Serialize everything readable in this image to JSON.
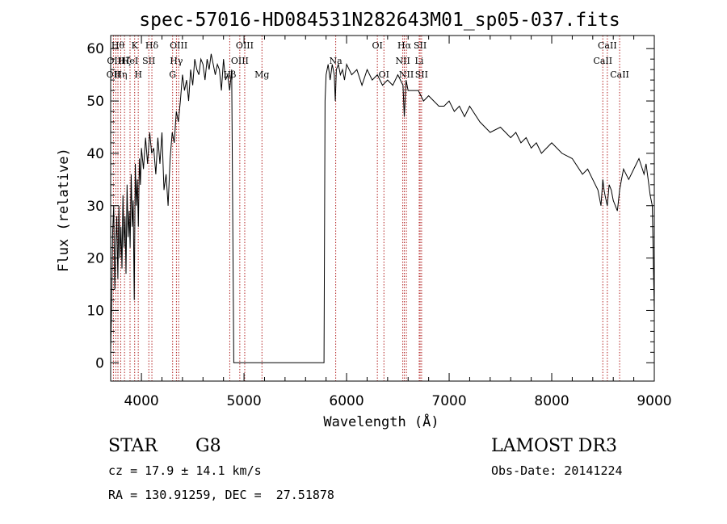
{
  "chart_data": {
    "type": "line",
    "title": "spec-57016-HD084531N282643M01_sp05-037.fits",
    "xlabel": "Wavelength (Å)",
    "ylabel": "Flux (relative)",
    "xlim": [
      3700,
      9000
    ],
    "ylim": [
      -3.5,
      62.5
    ],
    "xticks": [
      4000,
      5000,
      6000,
      7000,
      8000,
      9000
    ],
    "yticks": [
      0,
      10,
      20,
      30,
      40,
      50,
      60
    ],
    "grid": false,
    "legend": "none",
    "line_color": "#000000",
    "marker_color": "#b22222",
    "series": [
      {
        "x": [
          3700,
          3710,
          3720,
          3730,
          3740,
          3750,
          3760,
          3770,
          3780,
          3790,
          3800,
          3810,
          3820,
          3830,
          3840,
          3850,
          3860,
          3870,
          3880,
          3890,
          3900,
          3910,
          3920,
          3930,
          3940,
          3950,
          3960,
          3970,
          3980,
          3990,
          4000,
          4020,
          4040,
          4060,
          4080,
          4100,
          4120,
          4140,
          4160,
          4180,
          4200,
          4220,
          4240,
          4260,
          4280,
          4300,
          4320,
          4340,
          4360,
          4380,
          4400,
          4420,
          4440,
          4460,
          4480,
          4500,
          4520,
          4540,
          4560,
          4580,
          4600,
          4620,
          4640,
          4660,
          4680,
          4700,
          4720,
          4740,
          4760,
          4780,
          4800,
          4820,
          4840,
          4860,
          4880,
          4900,
          4910,
          4920,
          4930,
          4940,
          5000,
          5200,
          5400,
          5600,
          5780,
          5790,
          5800,
          5820,
          5840,
          5860,
          5880,
          5890,
          5900,
          5920,
          5940,
          5960,
          5980,
          6000,
          6050,
          6100,
          6150,
          6200,
          6250,
          6300,
          6350,
          6400,
          6450,
          6500,
          6550,
          6563,
          6580,
          6600,
          6650,
          6700,
          6750,
          6800,
          6850,
          6900,
          6950,
          7000,
          7050,
          7100,
          7150,
          7200,
          7300,
          7400,
          7500,
          7600,
          7650,
          7700,
          7750,
          7800,
          7850,
          7900,
          8000,
          8100,
          8200,
          8300,
          8350,
          8400,
          8450,
          8480,
          8498,
          8510,
          8520,
          8542,
          8560,
          8580,
          8600,
          8640,
          8662,
          8680,
          8700,
          8750,
          8800,
          8850,
          8900,
          8920,
          8940,
          8960,
          8980,
          9000
        ],
        "y": [
          2,
          12,
          25,
          30,
          14,
          22,
          28,
          16,
          30,
          20,
          26,
          18,
          32,
          22,
          28,
          17,
          34,
          24,
          29,
          22,
          36,
          26,
          31,
          12,
          38,
          30,
          35,
          26,
          39,
          34,
          41,
          37,
          43,
          38,
          44,
          40,
          41,
          36,
          43,
          38,
          44,
          33,
          36,
          30,
          39,
          44,
          42,
          48,
          46,
          50,
          55,
          52,
          54,
          50,
          56,
          53,
          58,
          56,
          55,
          58,
          57,
          54,
          58,
          56,
          59,
          57,
          55,
          57,
          56,
          52,
          58,
          54,
          55,
          52,
          56,
          0,
          0,
          0,
          0,
          0,
          0,
          0,
          0,
          0,
          0,
          50,
          55,
          57,
          54,
          57,
          55,
          50,
          56,
          57,
          55,
          56,
          54,
          57,
          55,
          56,
          53,
          56,
          54,
          55,
          53,
          54,
          53,
          55,
          53,
          47,
          54,
          52,
          52,
          52,
          50,
          51,
          50,
          49,
          49,
          50,
          48,
          49,
          47,
          49,
          46,
          44,
          45,
          43,
          44,
          42,
          43,
          41,
          42,
          40,
          42,
          40,
          39,
          36,
          37,
          35,
          33,
          30,
          35,
          33,
          32,
          30,
          34,
          33,
          31,
          29,
          33,
          35,
          37,
          35,
          37,
          39,
          36,
          38,
          35,
          32,
          30,
          10
        ]
      }
    ],
    "line_markers": [
      {
        "x": 3727,
        "label": "OII",
        "row": 2
      },
      {
        "x": 3750,
        "label": "OIII",
        "row": 1
      },
      {
        "x": 3771,
        "label": "Hθ",
        "row": 0
      },
      {
        "x": 3798,
        "label": "Hη",
        "row": 2
      },
      {
        "x": 3835,
        "label": "Hζ",
        "row": 1
      },
      {
        "x": 3889,
        "label": "HeI",
        "row": 1
      },
      {
        "x": 3934,
        "label": "K",
        "row": 0
      },
      {
        "x": 3969,
        "label": "H",
        "row": 2
      },
      {
        "x": 4072,
        "label": "SII",
        "row": 1
      },
      {
        "x": 4102,
        "label": "Hδ",
        "row": 0
      },
      {
        "x": 4304,
        "label": "G",
        "row": 2
      },
      {
        "x": 4341,
        "label": "Hγ",
        "row": 1
      },
      {
        "x": 4363,
        "label": "OIII",
        "row": 0
      },
      {
        "x": 4861,
        "label": "Hβ",
        "row": 2
      },
      {
        "x": 4959,
        "label": "OIII",
        "row": 1
      },
      {
        "x": 5007,
        "label": "OIII",
        "row": 0
      },
      {
        "x": 5175,
        "label": "Mg",
        "row": 2
      },
      {
        "x": 5894,
        "label": "Na",
        "row": 1
      },
      {
        "x": 6300,
        "label": "OI",
        "row": 0
      },
      {
        "x": 6364,
        "label": "OI",
        "row": 2
      },
      {
        "x": 6548,
        "label": "NII",
        "row": 1
      },
      {
        "x": 6563,
        "label": "Hα",
        "row": 0
      },
      {
        "x": 6583,
        "label": "NII",
        "row": 2
      },
      {
        "x": 6708,
        "label": "Li",
        "row": 1
      },
      {
        "x": 6717,
        "label": "SII",
        "row": 0
      },
      {
        "x": 6731,
        "label": "SII",
        "row": 2
      },
      {
        "x": 8498,
        "label": "CaII",
        "row": 1
      },
      {
        "x": 8542,
        "label": "CaII",
        "row": 0
      },
      {
        "x": 8662,
        "label": "CaII",
        "row": 2
      }
    ]
  },
  "info": {
    "class_label": "STAR",
    "subclass": "G8",
    "survey": "LAMOST DR3",
    "cz": "cz = 17.9 ± 14.1 km/s",
    "obs_date": "Obs-Date: 20141224",
    "coords": "RA = 130.91259, DEC =  27.51878"
  }
}
